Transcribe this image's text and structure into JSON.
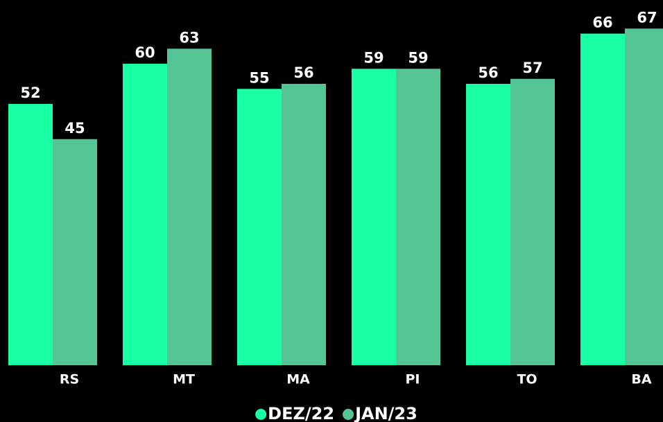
{
  "chart_data": {
    "type": "bar",
    "categories": [
      "RS",
      "MT",
      "MA",
      "PI",
      "TO",
      "BA"
    ],
    "series": [
      {
        "name": "DEZ/22",
        "color": "#19ffa3",
        "values": [
          52,
          60,
          55,
          59,
          56,
          66
        ]
      },
      {
        "name": "JAN/23",
        "color": "#56c596",
        "values": [
          45,
          63,
          56,
          59,
          57,
          67
        ]
      }
    ],
    "legend": "bottom"
  }
}
